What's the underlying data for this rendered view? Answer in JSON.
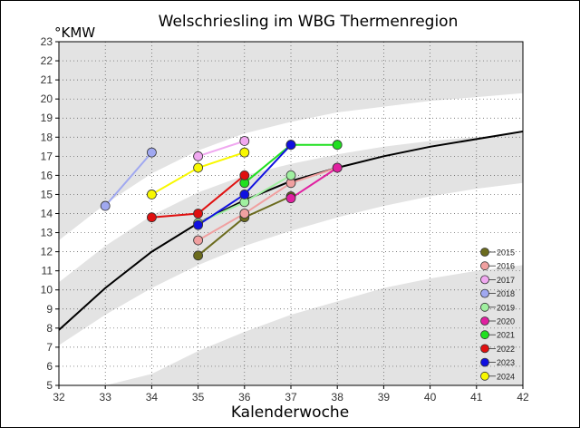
{
  "chart_data": {
    "type": "line",
    "title": "Welschriesling im WBG Thermenregion",
    "xlabel": "Kalenderwoche",
    "ylabel": "°KMW",
    "xlim": [
      32,
      42
    ],
    "ylim": [
      5,
      23
    ],
    "x_ticks": [
      32,
      33,
      34,
      35,
      36,
      37,
      38,
      39,
      40,
      41,
      42
    ],
    "y_ticks": [
      5,
      6,
      7,
      8,
      9,
      10,
      11,
      12,
      13,
      14,
      15,
      16,
      17,
      18,
      19,
      20,
      21,
      22,
      23
    ],
    "grid": true,
    "legend_position": "bottom-right",
    "reference_curve": {
      "x": [
        32,
        33,
        34,
        35,
        36,
        37,
        38,
        39,
        40,
        41,
        42
      ],
      "y": [
        7.9,
        10.1,
        12.0,
        13.5,
        14.7,
        15.7,
        16.4,
        17.0,
        17.5,
        17.9,
        18.3
      ]
    },
    "bands": [
      {
        "x": [
          32,
          33,
          34,
          35,
          36,
          37,
          38,
          39,
          40,
          41,
          42
        ],
        "upper": [
          12.6,
          14.5,
          16.1,
          17.3,
          18.2,
          18.8,
          19.3,
          19.6,
          19.9,
          20.1,
          20.3
        ],
        "lower": [
          10.4,
          12.3,
          13.9,
          15.1,
          16.0,
          16.6,
          17.1,
          17.5,
          17.8,
          18.0,
          18.2
        ]
      },
      {
        "x": [
          32,
          33,
          34,
          35,
          36,
          37,
          38,
          39,
          40,
          41,
          42
        ],
        "upper": [
          7.1,
          8.7,
          10.1,
          11.3,
          12.3,
          13.1,
          13.8,
          14.4,
          14.9,
          15.3,
          15.6
        ],
        "lower": [
          5.0,
          5.0,
          5.6,
          6.8,
          7.8,
          8.7,
          9.4,
          10.1,
          10.6,
          11.0,
          11.3
        ]
      }
    ],
    "series": [
      {
        "name": "2015",
        "color": "#6b6b1e",
        "x": [
          35,
          36,
          37
        ],
        "y": [
          11.8,
          13.8,
          14.9
        ]
      },
      {
        "name": "2016",
        "color": "#f0a0a0",
        "x": [
          35,
          36,
          37,
          38
        ],
        "y": [
          12.6,
          14.0,
          15.6,
          16.4
        ]
      },
      {
        "name": "2017",
        "color": "#f0a8f0",
        "x": [
          35,
          36
        ],
        "y": [
          17.0,
          17.8
        ]
      },
      {
        "name": "2018",
        "color": "#a0a8f0",
        "x": [
          33,
          34
        ],
        "y": [
          14.4,
          17.2
        ]
      },
      {
        "name": "2019",
        "color": "#a0f0a0",
        "x": [
          35,
          36,
          37
        ],
        "y": [
          13.5,
          14.6,
          16.0
        ]
      },
      {
        "name": "2020",
        "color": "#e020a0",
        "x": [
          37,
          38
        ],
        "y": [
          14.8,
          16.4
        ]
      },
      {
        "name": "2021",
        "color": "#20e020",
        "x": [
          36,
          37,
          38
        ],
        "y": [
          15.6,
          17.6,
          17.6
        ]
      },
      {
        "name": "2022",
        "color": "#e01010",
        "x": [
          34,
          35,
          36
        ],
        "y": [
          13.8,
          14.0,
          16.0
        ]
      },
      {
        "name": "2023",
        "color": "#1010e0",
        "x": [
          35,
          36,
          37
        ],
        "y": [
          13.4,
          15.0,
          17.6
        ]
      },
      {
        "name": "2024",
        "color": "#f8f800",
        "x": [
          34,
          35,
          36
        ],
        "y": [
          15.0,
          16.4,
          17.2
        ]
      }
    ]
  }
}
